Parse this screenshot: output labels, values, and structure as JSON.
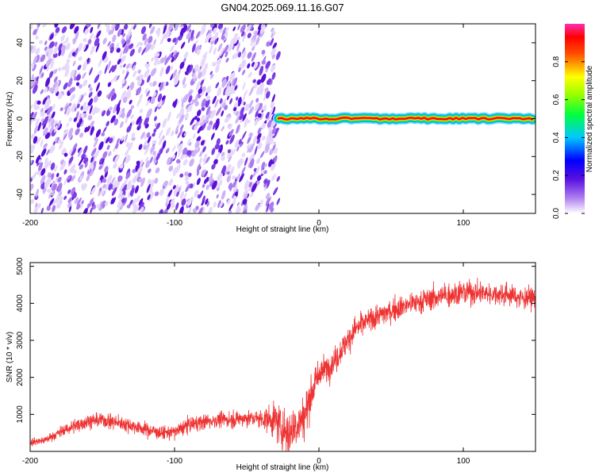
{
  "title": "GN04.2025.069.11.16.G07",
  "colors": {
    "snr_line": "#ee3333",
    "axis": "#000000",
    "background": "#ffffff",
    "spectrum_noise": "#6a1fd6"
  },
  "chart_data": [
    {
      "type": "heatmap",
      "xlabel": "Height of straight line (km)",
      "ylabel": "Frequency (Hz)",
      "xlim": [
        -200,
        150
      ],
      "ylim": [
        -50,
        50
      ],
      "xticks": [
        -200,
        -100,
        0,
        100
      ],
      "yticks": [
        -40,
        -20,
        0,
        20,
        40
      ],
      "colorbar": {
        "label": "Normalized spectral amplitude",
        "range": [
          0,
          1
        ],
        "ticks": [
          0.0,
          0.2,
          0.4,
          0.6,
          0.8
        ],
        "colormap": "rainbow (white-purple-blue-cyan-green-yellow-red-magenta)"
      },
      "regions": [
        {
          "x_range": [
            -200,
            -28
          ],
          "description": "broadband noise",
          "amplitude": 0.15
        },
        {
          "x_range": [
            -28,
            150
          ],
          "description": "narrow tone near 0 Hz",
          "frequency_hz": 0,
          "amplitude": 0.9
        }
      ],
      "grid": false
    },
    {
      "type": "line",
      "xlabel": "Height of straight line (km)",
      "ylabel": "SNR (10 * v/v)",
      "xlim": [
        -200,
        150
      ],
      "ylim": [
        0,
        5100
      ],
      "xticks": [
        -200,
        -100,
        0,
        100
      ],
      "yticks": [
        1000,
        2000,
        3000,
        4000,
        5000
      ],
      "grid": false,
      "series": [
        {
          "x": [
            -200,
            -190,
            -180,
            -170,
            -160,
            -150,
            -140,
            -130,
            -120,
            -110,
            -100,
            -90,
            -80,
            -70,
            -60,
            -50,
            -40,
            -30,
            -25,
            -20,
            -15,
            -10,
            -5,
            0,
            5,
            10,
            15,
            20,
            25,
            30,
            40,
            50,
            60,
            70,
            80,
            90,
            100,
            110,
            120,
            130,
            140,
            150
          ],
          "values": [
            250,
            300,
            500,
            680,
            820,
            850,
            780,
            700,
            600,
            500,
            520,
            720,
            800,
            850,
            860,
            900,
            880,
            850,
            600,
            500,
            750,
            950,
            1600,
            2100,
            2250,
            2400,
            2700,
            3000,
            3300,
            3450,
            3650,
            3800,
            3950,
            4050,
            4150,
            4250,
            4300,
            4300,
            4250,
            4250,
            4150,
            4150
          ],
          "noise": [
            80,
            90,
            120,
            150,
            160,
            170,
            160,
            160,
            150,
            150,
            160,
            170,
            170,
            170,
            180,
            180,
            190,
            400,
            500,
            550,
            550,
            500,
            400,
            300,
            300,
            300,
            300,
            300,
            300,
            260,
            260,
            260,
            260,
            260,
            260,
            280,
            280,
            260,
            240,
            240,
            240,
            220
          ]
        }
      ]
    }
  ]
}
